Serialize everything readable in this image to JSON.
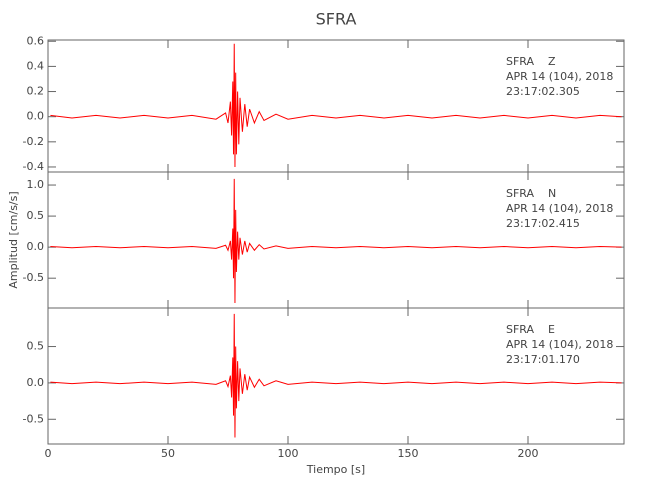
{
  "chart_data": [
    {
      "type": "line",
      "title": "SFRA",
      "annotation": [
        "SFRA    Z",
        "APR 14 (104), 2018",
        "23:17:02.305"
      ],
      "x": [
        1,
        10,
        20,
        30,
        40,
        50,
        60,
        70,
        74,
        75,
        76,
        76.5,
        77,
        77.3,
        77.6,
        77.9,
        78.2,
        78.5,
        79,
        79.5,
        80,
        81,
        82,
        83,
        84,
        86,
        88,
        90,
        95,
        100,
        110,
        120,
        130,
        140,
        150,
        160,
        170,
        180,
        190,
        200,
        210,
        220,
        230,
        239
      ],
      "values": [
        0.01,
        -0.01,
        0.01,
        -0.01,
        0.01,
        -0.01,
        0.01,
        -0.02,
        0.03,
        -0.05,
        0.12,
        -0.15,
        0.28,
        -0.3,
        0.58,
        -0.4,
        0.35,
        -0.3,
        0.2,
        -0.22,
        0.15,
        -0.12,
        0.1,
        -0.08,
        0.06,
        -0.05,
        0.04,
        -0.03,
        0.02,
        -0.02,
        0.01,
        -0.01,
        0.01,
        -0.01,
        0.01,
        -0.01,
        0.01,
        -0.01,
        0.01,
        -0.01,
        0.01,
        -0.01,
        0.01,
        0.0
      ],
      "color": "#ff0000",
      "xlim": [
        0,
        240
      ],
      "xticks": [
        0,
        50,
        100,
        150,
        200
      ],
      "ylim": [
        -0.44,
        0.61
      ],
      "yticks": [
        -0.4,
        -0.2,
        {
          "value": 0,
          "label": "0.0"
        },
        0.2,
        0.4,
        0.6
      ]
    },
    {
      "type": "line",
      "ylabel": "Amplitud [cm/s/s]",
      "annotation": [
        "SFRA    N",
        "APR 14 (104), 2018",
        "23:17:02.415"
      ],
      "x": [
        1,
        10,
        20,
        30,
        40,
        50,
        60,
        70,
        74,
        75,
        76,
        76.5,
        77,
        77.3,
        77.6,
        77.9,
        78.2,
        78.5,
        79,
        79.5,
        80,
        81,
        82,
        83,
        84,
        86,
        88,
        90,
        95,
        100,
        110,
        120,
        130,
        140,
        150,
        160,
        170,
        180,
        190,
        200,
        210,
        220,
        230,
        239
      ],
      "values": [
        0.01,
        -0.01,
        0.01,
        -0.01,
        0.01,
        -0.01,
        0.01,
        -0.02,
        0.03,
        -0.05,
        0.1,
        -0.2,
        0.3,
        -0.5,
        1.1,
        -0.9,
        0.6,
        -0.4,
        0.25,
        -0.2,
        0.15,
        -0.12,
        0.1,
        -0.08,
        0.06,
        -0.05,
        0.04,
        -0.03,
        0.02,
        -0.02,
        0.01,
        -0.01,
        0.01,
        -0.01,
        0.01,
        -0.01,
        0.01,
        -0.01,
        0.01,
        -0.01,
        0.01,
        -0.01,
        0.01,
        0.0
      ],
      "color": "#ff0000",
      "xlim": [
        0,
        240
      ],
      "xticks": [
        0,
        50,
        100,
        150,
        200
      ],
      "ylim": [
        -0.98,
        1.21
      ],
      "yticks": [
        -0.5,
        {
          "value": 0,
          "label": "0.0"
        },
        0.5,
        {
          "value": 1,
          "label": "1.0"
        }
      ]
    },
    {
      "type": "line",
      "xlabel": "Tiempo [s]",
      "annotation": [
        "SFRA    E",
        "APR 14 (104), 2018",
        "23:17:01.170"
      ],
      "x": [
        1,
        10,
        20,
        30,
        40,
        50,
        60,
        70,
        74,
        75,
        76,
        76.5,
        77,
        77.3,
        77.6,
        77.9,
        78.2,
        78.5,
        79,
        79.5,
        80,
        81,
        82,
        83,
        84,
        86,
        88,
        90,
        95,
        100,
        110,
        120,
        130,
        140,
        150,
        160,
        170,
        180,
        190,
        200,
        210,
        220,
        230,
        239
      ],
      "values": [
        0.01,
        -0.01,
        0.01,
        -0.01,
        0.01,
        -0.01,
        0.01,
        -0.02,
        0.03,
        -0.05,
        0.1,
        -0.2,
        0.35,
        -0.45,
        0.95,
        -0.75,
        0.5,
        -0.35,
        0.3,
        -0.25,
        0.2,
        -0.15,
        0.12,
        -0.1,
        0.08,
        -0.06,
        0.05,
        -0.04,
        0.03,
        -0.02,
        0.01,
        -0.01,
        0.01,
        -0.01,
        0.01,
        -0.01,
        0.01,
        -0.01,
        0.01,
        -0.01,
        0.01,
        -0.01,
        0.01,
        0.0
      ],
      "color": "#ff0000",
      "xlim": [
        0,
        240
      ],
      "xticks": [
        0,
        50,
        100,
        150,
        200
      ],
      "ylim": [
        -0.84,
        1.03
      ],
      "yticks": [
        -0.5,
        {
          "value": 0,
          "label": "0.0"
        },
        0.5
      ]
    }
  ]
}
